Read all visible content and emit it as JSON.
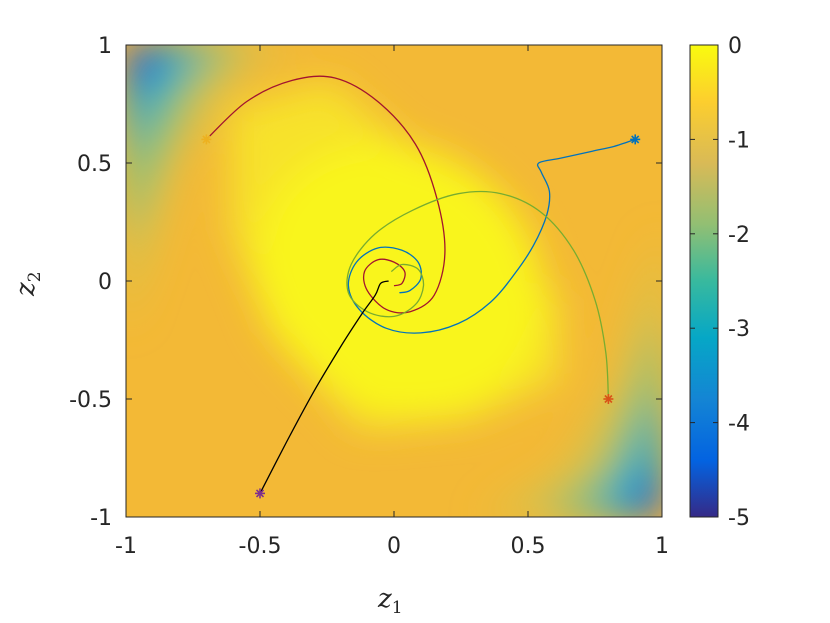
{
  "chart_data": {
    "type": "line",
    "title": "",
    "xlabel": "z",
    "xlabel_sub": "1",
    "ylabel": "z",
    "ylabel_sub": "2",
    "xlim": [
      -1,
      1
    ],
    "ylim": [
      -1,
      1
    ],
    "x_ticks": [
      "-1",
      "-0.5",
      "0",
      "0.5",
      "1"
    ],
    "y_ticks": [
      "1",
      "0.5",
      "0",
      "-0.5",
      "-1"
    ],
    "grid": false,
    "background": {
      "type": "heatmap",
      "description_free": true,
      "range": [
        -5,
        0
      ]
    },
    "colorbar": {
      "range": [
        -5,
        0
      ],
      "ticks": [
        "0",
        "-1",
        "-2",
        "-3",
        "-4",
        "-5"
      ]
    },
    "series": [
      {
        "color": "#a2142f",
        "start": [
          -0.7,
          0.6
        ],
        "start_color": "#edb120",
        "points": [
          [
            -0.7,
            0.6
          ],
          [
            -0.55,
            0.76
          ],
          [
            -0.38,
            0.85
          ],
          [
            -0.22,
            0.86
          ],
          [
            -0.06,
            0.76
          ],
          [
            0.08,
            0.58
          ],
          [
            0.16,
            0.35
          ],
          [
            0.19,
            0.12
          ],
          [
            0.15,
            -0.06
          ],
          [
            0.06,
            -0.13
          ],
          [
            -0.03,
            -0.12
          ],
          [
            -0.1,
            -0.04
          ],
          [
            -0.11,
            0.04
          ],
          [
            -0.06,
            0.09
          ],
          [
            0.0,
            0.08
          ],
          [
            0.04,
            0.04
          ],
          [
            0.03,
            -0.01
          ],
          [
            0.0,
            -0.02
          ]
        ]
      },
      {
        "color": "#0072bd",
        "start": [
          0.9,
          0.6
        ],
        "start_color": "#0072bd",
        "points": [
          [
            0.9,
            0.6
          ],
          [
            0.82,
            0.57
          ],
          [
            0.74,
            0.55
          ],
          [
            0.62,
            0.52
          ],
          [
            0.54,
            0.5
          ],
          [
            0.55,
            0.46
          ],
          [
            0.58,
            0.38
          ],
          [
            0.57,
            0.28
          ],
          [
            0.52,
            0.15
          ],
          [
            0.45,
            0.03
          ],
          [
            0.36,
            -0.09
          ],
          [
            0.24,
            -0.18
          ],
          [
            0.1,
            -0.22
          ],
          [
            -0.03,
            -0.2
          ],
          [
            -0.13,
            -0.12
          ],
          [
            -0.17,
            -0.02
          ],
          [
            -0.14,
            0.08
          ],
          [
            -0.06,
            0.14
          ],
          [
            0.03,
            0.13
          ],
          [
            0.09,
            0.08
          ],
          [
            0.1,
            0.01
          ],
          [
            0.06,
            -0.04
          ],
          [
            0.02,
            -0.05
          ]
        ]
      },
      {
        "color": "#77ac30",
        "start": [
          0.8,
          -0.5
        ],
        "start_color": "#d95319",
        "points": [
          [
            0.8,
            -0.5
          ],
          [
            0.79,
            -0.3
          ],
          [
            0.75,
            -0.08
          ],
          [
            0.67,
            0.13
          ],
          [
            0.55,
            0.29
          ],
          [
            0.4,
            0.37
          ],
          [
            0.24,
            0.37
          ],
          [
            0.07,
            0.3
          ],
          [
            -0.07,
            0.2
          ],
          [
            -0.16,
            0.07
          ],
          [
            -0.17,
            -0.05
          ],
          [
            -0.1,
            -0.13
          ],
          [
            0.0,
            -0.15
          ],
          [
            0.08,
            -0.1
          ],
          [
            0.11,
            -0.02
          ],
          [
            0.09,
            0.05
          ],
          [
            0.03,
            0.07
          ],
          [
            -0.01,
            0.04
          ]
        ]
      },
      {
        "color": "#000000",
        "start": [
          -0.5,
          -0.9
        ],
        "start_color": "#7e2f8e",
        "points": [
          [
            -0.5,
            -0.9
          ],
          [
            -0.4,
            -0.68
          ],
          [
            -0.3,
            -0.47
          ],
          [
            -0.2,
            -0.28
          ],
          [
            -0.12,
            -0.14
          ],
          [
            -0.07,
            -0.06
          ],
          [
            -0.05,
            -0.01
          ],
          [
            -0.02,
            0.0
          ]
        ]
      }
    ]
  }
}
